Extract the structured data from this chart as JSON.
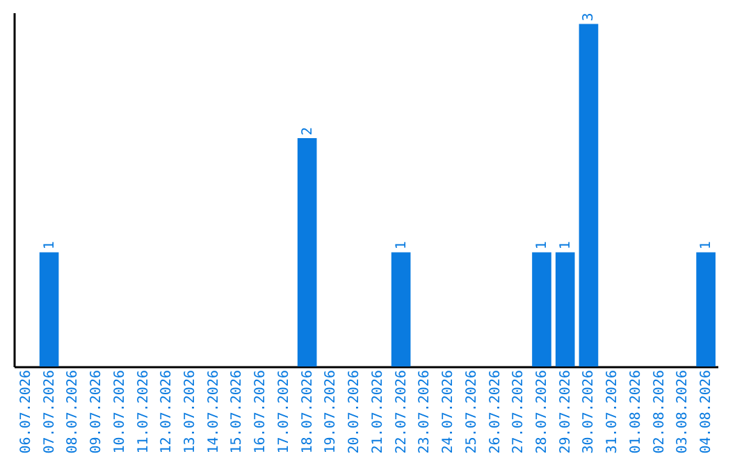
{
  "chart_data": {
    "type": "bar",
    "categories": [
      "06.07.2026",
      "07.07.2026",
      "08.07.2026",
      "09.07.2026",
      "10.07.2026",
      "11.07.2026",
      "12.07.2026",
      "13.07.2026",
      "14.07.2026",
      "15.07.2026",
      "16.07.2026",
      "17.07.2026",
      "18.07.2026",
      "19.07.2026",
      "20.07.2026",
      "21.07.2026",
      "22.07.2026",
      "23.07.2026",
      "24.07.2026",
      "25.07.2026",
      "26.07.2026",
      "27.07.2026",
      "28.07.2026",
      "29.07.2026",
      "30.07.2026",
      "31.07.2026",
      "01.08.2026",
      "02.08.2026",
      "03.08.2026",
      "04.08.2026"
    ],
    "values": [
      0,
      1,
      0,
      0,
      0,
      0,
      0,
      0,
      0,
      0,
      0,
      0,
      2,
      0,
      0,
      0,
      1,
      0,
      0,
      0,
      0,
      0,
      1,
      1,
      3,
      0,
      0,
      0,
      0,
      1
    ],
    "value_labels": [
      null,
      "1",
      null,
      null,
      null,
      null,
      null,
      null,
      null,
      null,
      null,
      null,
      "2",
      null,
      null,
      null,
      "1",
      null,
      null,
      null,
      null,
      null,
      "1",
      "1",
      "3",
      null,
      null,
      null,
      null,
      "1"
    ],
    "color": "#0a7be0",
    "ylim": [
      0,
      3.1
    ],
    "tick_labels": "x"
  }
}
